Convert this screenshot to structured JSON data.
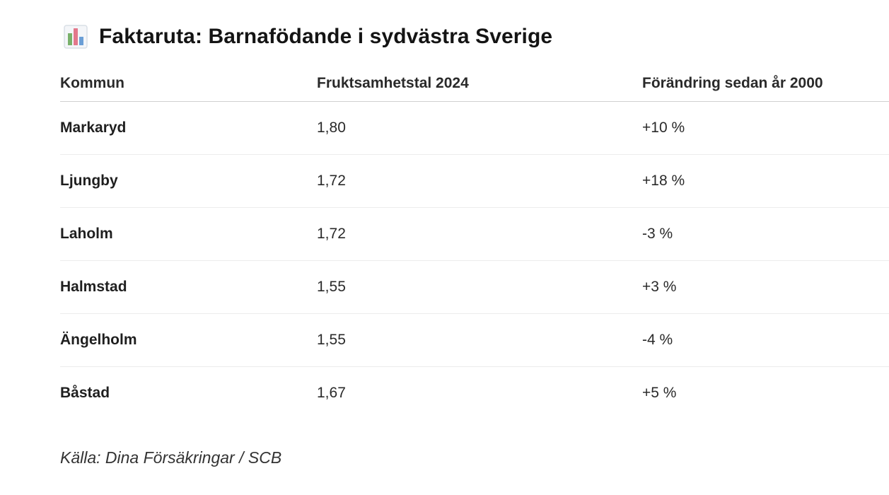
{
  "factbox": {
    "icon": "bar-chart-icon",
    "title": "Faktaruta: Barnafödande i sydvästra Sverige"
  },
  "table": {
    "columns": [
      "Kommun",
      "Fruktsamhetstal 2024",
      "Förändring sedan år 2000"
    ],
    "rows": [
      [
        "Markaryd",
        "1,80",
        "+10 %"
      ],
      [
        "Ljungby",
        "1,72",
        "+18 %"
      ],
      [
        "Laholm",
        "1,72",
        "-3 %"
      ],
      [
        "Halmstad",
        "1,55",
        "+3 %"
      ],
      [
        "Ängelholm",
        "1,55",
        "-4 %"
      ],
      [
        "Båstad",
        "1,67",
        "+5 %"
      ]
    ]
  },
  "source": "Källa: Dina Försäkringar / SCB",
  "colors": {
    "icon_bar_left": "#79b16b",
    "icon_bar_middle": "#e3788b",
    "icon_bar_right": "#6b9fd6",
    "icon_frame": "#d9dfe6"
  }
}
